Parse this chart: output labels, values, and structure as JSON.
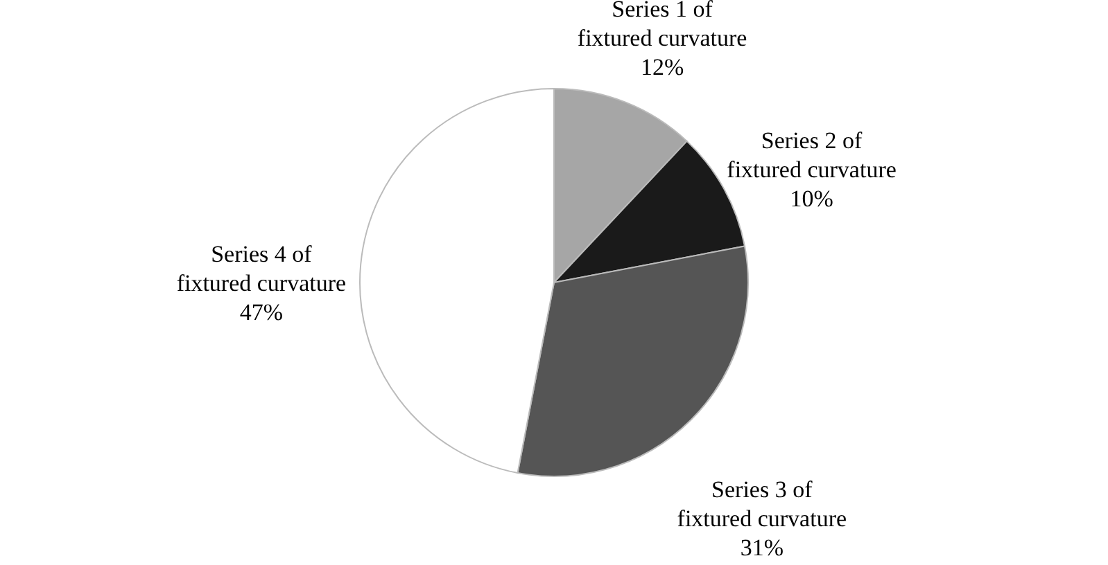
{
  "chart_data": {
    "type": "pie",
    "categories": [
      "Series 1 of\nfixtured curvature",
      "Series 2 of\nfixtured curvature",
      "Series 3 of\nfixtured curvature",
      "Series 4 of\nfixtured curvature"
    ],
    "values": [
      12,
      10,
      31,
      47
    ],
    "value_labels": [
      "12%",
      "10%",
      "31%",
      "47%"
    ],
    "colors": [
      "#a6a6a6",
      "#1a1a1a",
      "#555555",
      "#ffffff"
    ]
  }
}
